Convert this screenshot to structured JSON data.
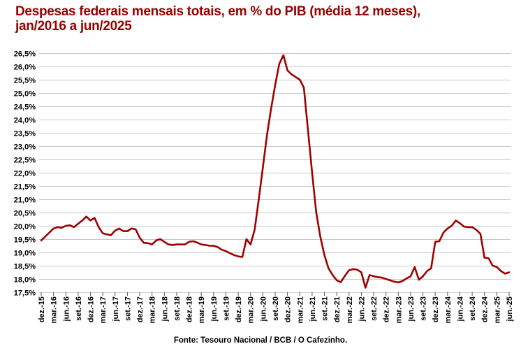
{
  "header": {
    "title_line1": "Despesas federais mensais totais, em % do PIB (média 12 meses),",
    "title_line2": "jan/2016 a jun/2025",
    "title_color": "#990000"
  },
  "footer": {
    "source": "Fonte: Tesouro Nacional / BCB / O Cafezinho."
  },
  "chart_data": {
    "type": "line",
    "title": "Despesas federais mensais totais, em % do PIB (média 12 meses), jan/2016 a jun/2025",
    "xlabel": "",
    "ylabel": "",
    "ylim": [
      17.5,
      26.5
    ],
    "y_step": 0.5,
    "grid": "horizontal",
    "legend": "none",
    "line_color": "#A00000",
    "grid_color": "#C9C9C9",
    "tick_color": "#555555",
    "y_tick_labels": [
      "26,5%",
      "26,0%",
      "25,5%",
      "25,0%",
      "24,5%",
      "24,0%",
      "23,5%",
      "23,0%",
      "22,5%",
      "22,0%",
      "21,5%",
      "21,0%",
      "20,5%",
      "20,0%",
      "19,5%",
      "19,0%",
      "18,5%",
      "18,0%",
      "17,5%"
    ],
    "x_tick_labels": [
      "dez.-15",
      "mar.-16",
      "jun.-16",
      "set.-16",
      "dez.-16",
      "mar.-17",
      "jun.-17",
      "set.-17",
      "dez.-17",
      "mar.-18",
      "jun.-18",
      "set.-18",
      "dez.-18",
      "mar.-19",
      "jun.-19",
      "set.-19",
      "dez.-19",
      "mar.-20",
      "jun.-20",
      "set.-20",
      "dez.-20",
      "mar.-21",
      "jun.-21",
      "set.-21",
      "dez.-21",
      "mar.-22",
      "jun.-22",
      "set.-22",
      "dez.-22",
      "mar.-23",
      "jun.-23",
      "set.-23",
      "dez.-23",
      "mar.-24",
      "jun.-24",
      "set.-24",
      "dez.-24",
      "mar.-25",
      "jun.-25"
    ],
    "x_months_per_tick": 3,
    "series": [
      {
        "name": "Despesas federais totais, % do PIB (média 12 meses)",
        "monthly_start": "dez.-15",
        "monthly_end": "jun.-25",
        "values": [
          19.45,
          19.6,
          19.75,
          19.9,
          19.95,
          19.93,
          20.0,
          20.02,
          19.95,
          20.08,
          20.2,
          20.35,
          20.2,
          20.3,
          19.95,
          19.72,
          19.68,
          19.65,
          19.82,
          19.9,
          19.8,
          19.8,
          19.9,
          19.87,
          19.55,
          19.36,
          19.35,
          19.3,
          19.45,
          19.5,
          19.4,
          19.3,
          19.28,
          19.3,
          19.3,
          19.3,
          19.4,
          19.42,
          19.37,
          19.3,
          19.28,
          19.25,
          19.25,
          19.2,
          19.1,
          19.05,
          18.97,
          18.9,
          18.85,
          18.83,
          19.5,
          19.3,
          19.85,
          21.0,
          22.2,
          23.4,
          24.4,
          25.3,
          26.1,
          26.42,
          25.85,
          25.7,
          25.6,
          25.5,
          25.2,
          23.6,
          22.0,
          20.5,
          19.6,
          18.9,
          18.4,
          18.15,
          17.95,
          17.88,
          18.12,
          18.33,
          18.37,
          18.35,
          18.25,
          17.67,
          18.15,
          18.1,
          18.07,
          18.05,
          18.0,
          17.95,
          17.9,
          17.87,
          17.92,
          18.02,
          18.1,
          18.45,
          17.97,
          18.1,
          18.3,
          18.4,
          19.4,
          19.42,
          19.75,
          19.9,
          20.0,
          20.2,
          20.1,
          19.97,
          19.95,
          19.95,
          19.85,
          19.7,
          18.8,
          18.78,
          18.5,
          18.45,
          18.3,
          18.2,
          18.25
        ]
      }
    ]
  }
}
